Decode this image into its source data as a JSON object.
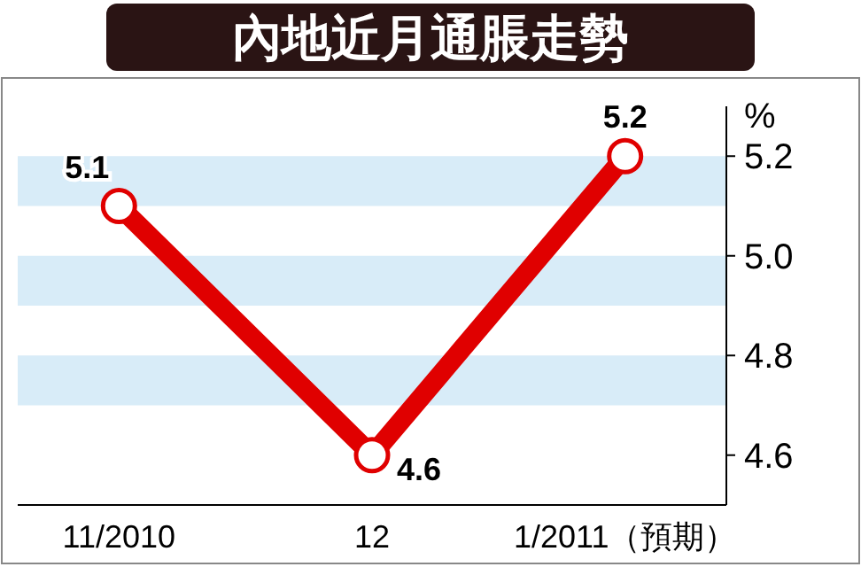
{
  "chart_data": {
    "type": "line",
    "title": "內地近月通脹走勢",
    "ylabel": "%",
    "categories": [
      "11/2010",
      "12",
      "1/2011（預期）"
    ],
    "series": [
      {
        "color": "#e00000",
        "values": [
          5.1,
          4.6,
          5.2
        ]
      }
    ],
    "ylim": [
      4.5,
      5.3
    ],
    "yticks": [
      4.6,
      4.8,
      {
        "value": 5.0,
        "label": "5.0"
      },
      5.2
    ],
    "bands": [
      {
        "axis": "y",
        "from": 5.1,
        "to": 5.2,
        "color": "#d8ecf8"
      },
      {
        "axis": "y",
        "from": 4.9,
        "to": 5.0,
        "color": "#d8ecf8"
      },
      {
        "axis": "y",
        "from": 4.7,
        "to": 4.8,
        "color": "#d8ecf8"
      }
    ],
    "data_labels": true,
    "marker": "circle",
    "line_style": "solid"
  }
}
